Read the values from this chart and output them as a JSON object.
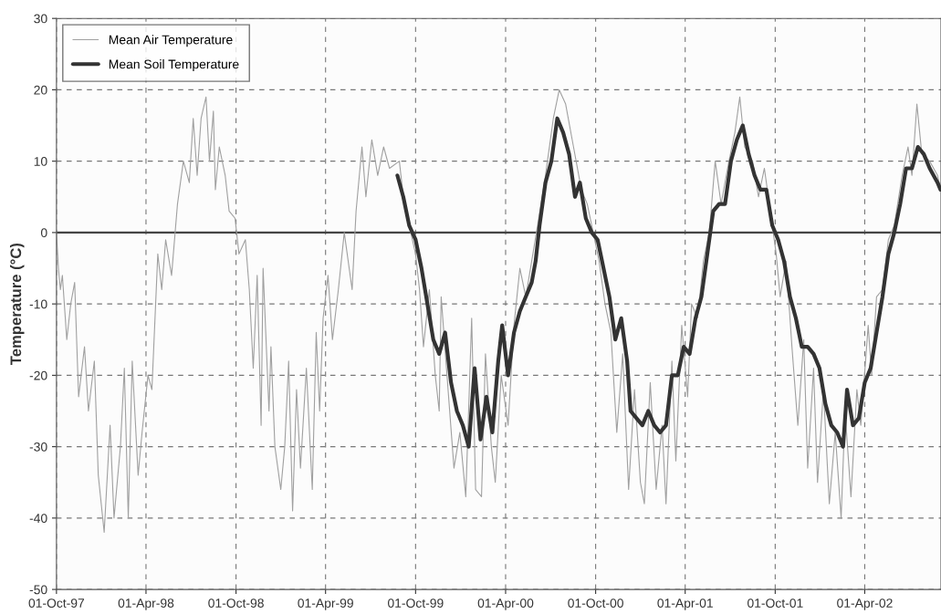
{
  "chart_data": {
    "type": "line",
    "ylabel": "Temperature (°C)",
    "xlim": [
      "1997-10-01",
      "2002-09-03"
    ],
    "ylim": [
      -50,
      30
    ],
    "yticks": [
      -50,
      -40,
      -30,
      -20,
      -10,
      0,
      10,
      20,
      30
    ],
    "xticks": [
      {
        "value": "1997-10-01",
        "label": "01-Oct-97"
      },
      {
        "value": "1998-04-01",
        "label": "01-Apr-98"
      },
      {
        "value": "1998-10-01",
        "label": "01-Oct-98"
      },
      {
        "value": "1999-04-01",
        "label": "01-Apr-99"
      },
      {
        "value": "1999-10-01",
        "label": "01-Oct-99"
      },
      {
        "value": "2000-04-01",
        "label": "01-Apr-00"
      },
      {
        "value": "2000-10-01",
        "label": "01-Oct-00"
      },
      {
        "value": "2001-04-01",
        "label": "01-Apr-01"
      },
      {
        "value": "2001-10-01",
        "label": "01-Oct-01"
      },
      {
        "value": "2002-04-01",
        "label": "01-Apr-02"
      }
    ],
    "grid": true,
    "legend": "top left",
    "marker": "none",
    "ref_lines": [
      {
        "axis": "y",
        "value": 0,
        "label": null,
        "color": "#444444",
        "line_style": "solid"
      }
    ],
    "series": [
      {
        "name": "Mean Air Temperature",
        "color": "#a0a0a0",
        "line_style": "solid",
        "x": [
          "1997-10-01",
          "1997-10-05",
          "1997-10-09",
          "1997-10-13",
          "1997-10-22",
          "1997-10-30",
          "1997-11-07",
          "1997-11-15",
          "1997-11-27",
          "1997-12-05",
          "1997-12-17",
          "1997-12-25",
          "1998-01-06",
          "1998-01-18",
          "1998-01-26",
          "1998-02-08",
          "1998-02-16",
          "1998-02-24",
          "1998-03-04",
          "1998-03-16",
          "1998-03-24",
          "1998-04-05",
          "1998-04-13",
          "1998-04-25",
          "1998-05-03",
          "1998-05-11",
          "1998-05-23",
          "1998-06-04",
          "1998-06-16",
          "1998-06-28",
          "1998-07-06",
          "1998-07-14",
          "1998-07-22",
          "1998-08-01",
          "1998-08-08",
          "1998-08-16",
          "1998-08-20",
          "1998-08-28",
          "1998-09-09",
          "1998-09-17",
          "1998-09-29",
          "1998-10-07",
          "1998-10-20",
          "1998-10-28",
          "1998-11-05",
          "1998-11-13",
          "1998-11-21",
          "1998-11-25",
          "1998-12-07",
          "1998-12-11",
          "1998-12-19",
          "1998-12-31",
          "1999-01-08",
          "1999-01-16",
          "1999-01-24",
          "1999-02-01",
          "1999-02-09",
          "1999-02-21",
          "1999-03-05",
          "1999-03-13",
          "1999-03-20",
          "1999-03-27",
          "1999-04-06",
          "1999-04-15",
          "1999-04-27",
          "1999-05-09",
          "1999-05-25",
          "1999-06-02",
          "1999-06-14",
          "1999-06-22",
          "1999-07-04",
          "1999-07-16",
          "1999-07-28",
          "1999-08-09",
          "1999-08-29",
          "1999-09-06",
          "1999-09-18",
          "1999-10-01",
          "1999-10-09",
          "1999-10-17",
          "1999-10-29",
          "1999-11-10",
          "1999-11-18",
          "1999-11-22",
          "1999-12-06",
          "1999-12-18",
          "1999-12-30",
          "2000-01-11",
          "2000-01-23",
          "2000-01-31",
          "2000-02-12",
          "2000-02-20",
          "2000-03-03",
          "2000-03-11",
          "2000-03-23",
          "2000-04-06",
          "2000-04-18",
          "2000-04-30",
          "2000-05-12",
          "2000-05-24",
          "2000-06-05",
          "2000-06-21",
          "2000-07-07",
          "2000-07-19",
          "2000-08-01",
          "2000-08-17",
          "2000-09-02",
          "2000-09-14",
          "2000-09-26",
          "2000-10-08",
          "2000-10-20",
          "2000-11-01",
          "2000-11-13",
          "2000-11-25",
          "2000-12-07",
          "2000-12-19",
          "2000-12-31",
          "2001-01-08",
          "2001-01-20",
          "2001-02-01",
          "2001-02-13",
          "2001-02-21",
          "2001-03-05",
          "2001-03-13",
          "2001-03-25",
          "2001-04-06",
          "2001-04-14",
          "2001-04-26",
          "2001-05-08",
          "2001-05-20",
          "2001-06-01",
          "2001-06-13",
          "2001-06-29",
          "2001-07-11",
          "2001-07-21",
          "2001-07-31",
          "2001-08-16",
          "2001-08-28",
          "2001-09-09",
          "2001-09-21",
          "2001-10-03",
          "2001-10-11",
          "2001-10-23",
          "2001-11-04",
          "2001-11-16",
          "2001-11-28",
          "2001-12-06",
          "2001-12-18",
          "2001-12-26",
          "2002-01-07",
          "2002-01-19",
          "2002-01-31",
          "2002-02-12",
          "2002-02-20",
          "2002-03-04",
          "2002-03-16",
          "2002-03-24",
          "2002-04-08",
          "2002-04-15",
          "2002-04-25",
          "2002-05-07",
          "2002-05-19",
          "2002-05-31",
          "2002-06-16",
          "2002-06-28",
          "2002-07-06",
          "2002-07-16",
          "2002-07-26",
          "2002-08-11",
          "2002-08-27",
          "2002-09-02"
        ],
        "values": [
          0,
          -5,
          -8,
          -6,
          -15,
          -10,
          -7,
          -23,
          -16,
          -25,
          -18,
          -34,
          -42,
          -27,
          -40,
          -30,
          -19,
          -40,
          -18,
          -34,
          -28,
          -20,
          -22,
          -3,
          -8,
          -1,
          -6,
          4,
          10,
          7,
          16,
          8,
          16,
          19,
          10,
          17,
          6,
          12,
          8,
          3,
          2,
          -3,
          -1,
          -8,
          -19,
          -6,
          -27,
          -5,
          -25,
          -16,
          -30,
          -36,
          -30,
          -18,
          -39,
          -22,
          -33,
          -19,
          -36,
          -14,
          -25,
          -12,
          -6,
          -15,
          -8,
          0,
          -8,
          3,
          12,
          5,
          13,
          8,
          12,
          9,
          10,
          5,
          1,
          -3,
          -8,
          -16,
          -8,
          -20,
          -25,
          -9,
          -22,
          -33,
          -28,
          -37,
          -12,
          -36,
          -37,
          -17,
          -30,
          -35,
          -20,
          -27,
          -13,
          -5,
          -9,
          -4,
          1,
          8,
          16,
          20,
          18,
          12,
          6,
          4,
          0,
          -4,
          -10,
          -14,
          -28,
          -17,
          -36,
          -22,
          -35,
          -38,
          -21,
          -36,
          -27,
          -38,
          -18,
          -32,
          -13,
          -23,
          -10,
          -12,
          -4,
          0,
          10,
          4,
          10,
          14,
          19,
          12,
          10,
          5,
          9,
          3,
          -3,
          -9,
          -4,
          -16,
          -27,
          -15,
          -33,
          -19,
          -35,
          -22,
          -38,
          -28,
          -40,
          -25,
          -37,
          -22,
          -27,
          -13,
          -20,
          -9,
          -8,
          -1,
          1,
          8,
          12,
          8,
          18,
          11,
          10,
          8,
          6
        ]
      },
      {
        "name": "Mean Soil Temperature",
        "color": "#333333",
        "line_style": "solid",
        "x": [
          "1999-08-25",
          "1999-09-06",
          "1999-09-18",
          "1999-10-01",
          "1999-10-13",
          "1999-10-25",
          "1999-11-06",
          "1999-11-18",
          "1999-11-30",
          "1999-12-12",
          "1999-12-24",
          "2000-01-05",
          "2000-01-17",
          "2000-01-29",
          "2000-02-10",
          "2000-02-22",
          "2000-03-05",
          "2000-03-17",
          "2000-03-25",
          "2000-04-06",
          "2000-04-18",
          "2000-04-30",
          "2000-05-12",
          "2000-05-24",
          "2000-06-01",
          "2000-06-09",
          "2000-06-21",
          "2000-07-03",
          "2000-07-15",
          "2000-07-27",
          "2000-08-08",
          "2000-08-20",
          "2000-08-30",
          "2000-09-11",
          "2000-09-23",
          "2000-10-05",
          "2000-10-17",
          "2000-10-29",
          "2000-11-10",
          "2000-11-22",
          "2000-12-04",
          "2000-12-11",
          "2000-12-23",
          "2001-01-04",
          "2001-01-16",
          "2001-01-28",
          "2001-02-09",
          "2001-02-21",
          "2001-03-05",
          "2001-03-17",
          "2001-03-29",
          "2001-04-10",
          "2001-04-22",
          "2001-05-04",
          "2001-05-16",
          "2001-05-28",
          "2001-06-09",
          "2001-06-21",
          "2001-07-03",
          "2001-07-15",
          "2001-07-27",
          "2001-08-08",
          "2001-08-20",
          "2001-09-01",
          "2001-09-13",
          "2001-09-25",
          "2001-10-07",
          "2001-10-19",
          "2001-10-31",
          "2001-11-12",
          "2001-11-24",
          "2001-12-06",
          "2001-12-18",
          "2001-12-30",
          "2002-01-11",
          "2002-01-23",
          "2002-02-04",
          "2002-02-16",
          "2002-02-24",
          "2002-03-08",
          "2002-03-20",
          "2002-04-01",
          "2002-04-13",
          "2002-04-25",
          "2002-05-07",
          "2002-05-19",
          "2002-05-31",
          "2002-06-12",
          "2002-06-24",
          "2002-07-06",
          "2002-07-18",
          "2002-07-30",
          "2002-08-11",
          "2002-08-27",
          "2002-09-02"
        ],
        "values": [
          8,
          5,
          1,
          -1,
          -5,
          -10,
          -15,
          -17,
          -14,
          -21,
          -25,
          -27,
          -30,
          -19,
          -29,
          -23,
          -28,
          -18,
          -13,
          -20,
          -14,
          -11,
          -9,
          -7,
          -4,
          1,
          7,
          10,
          16,
          14,
          11,
          5,
          7,
          2,
          0,
          -1,
          -5,
          -9,
          -15,
          -12,
          -18,
          -25,
          -26,
          -27,
          -25,
          -27,
          -28,
          -27,
          -20,
          -20,
          -16,
          -17,
          -12,
          -9,
          -3,
          3,
          4,
          4,
          10,
          13,
          15,
          11,
          8,
          6,
          6,
          1,
          -1,
          -4,
          -9,
          -12,
          -16,
          -16,
          -17,
          -19,
          -24,
          -27,
          -28,
          -30,
          -22,
          -27,
          -26,
          -21,
          -19,
          -14,
          -9,
          -3,
          0,
          4,
          9,
          9,
          12,
          11,
          9,
          7,
          6
        ]
      }
    ]
  }
}
